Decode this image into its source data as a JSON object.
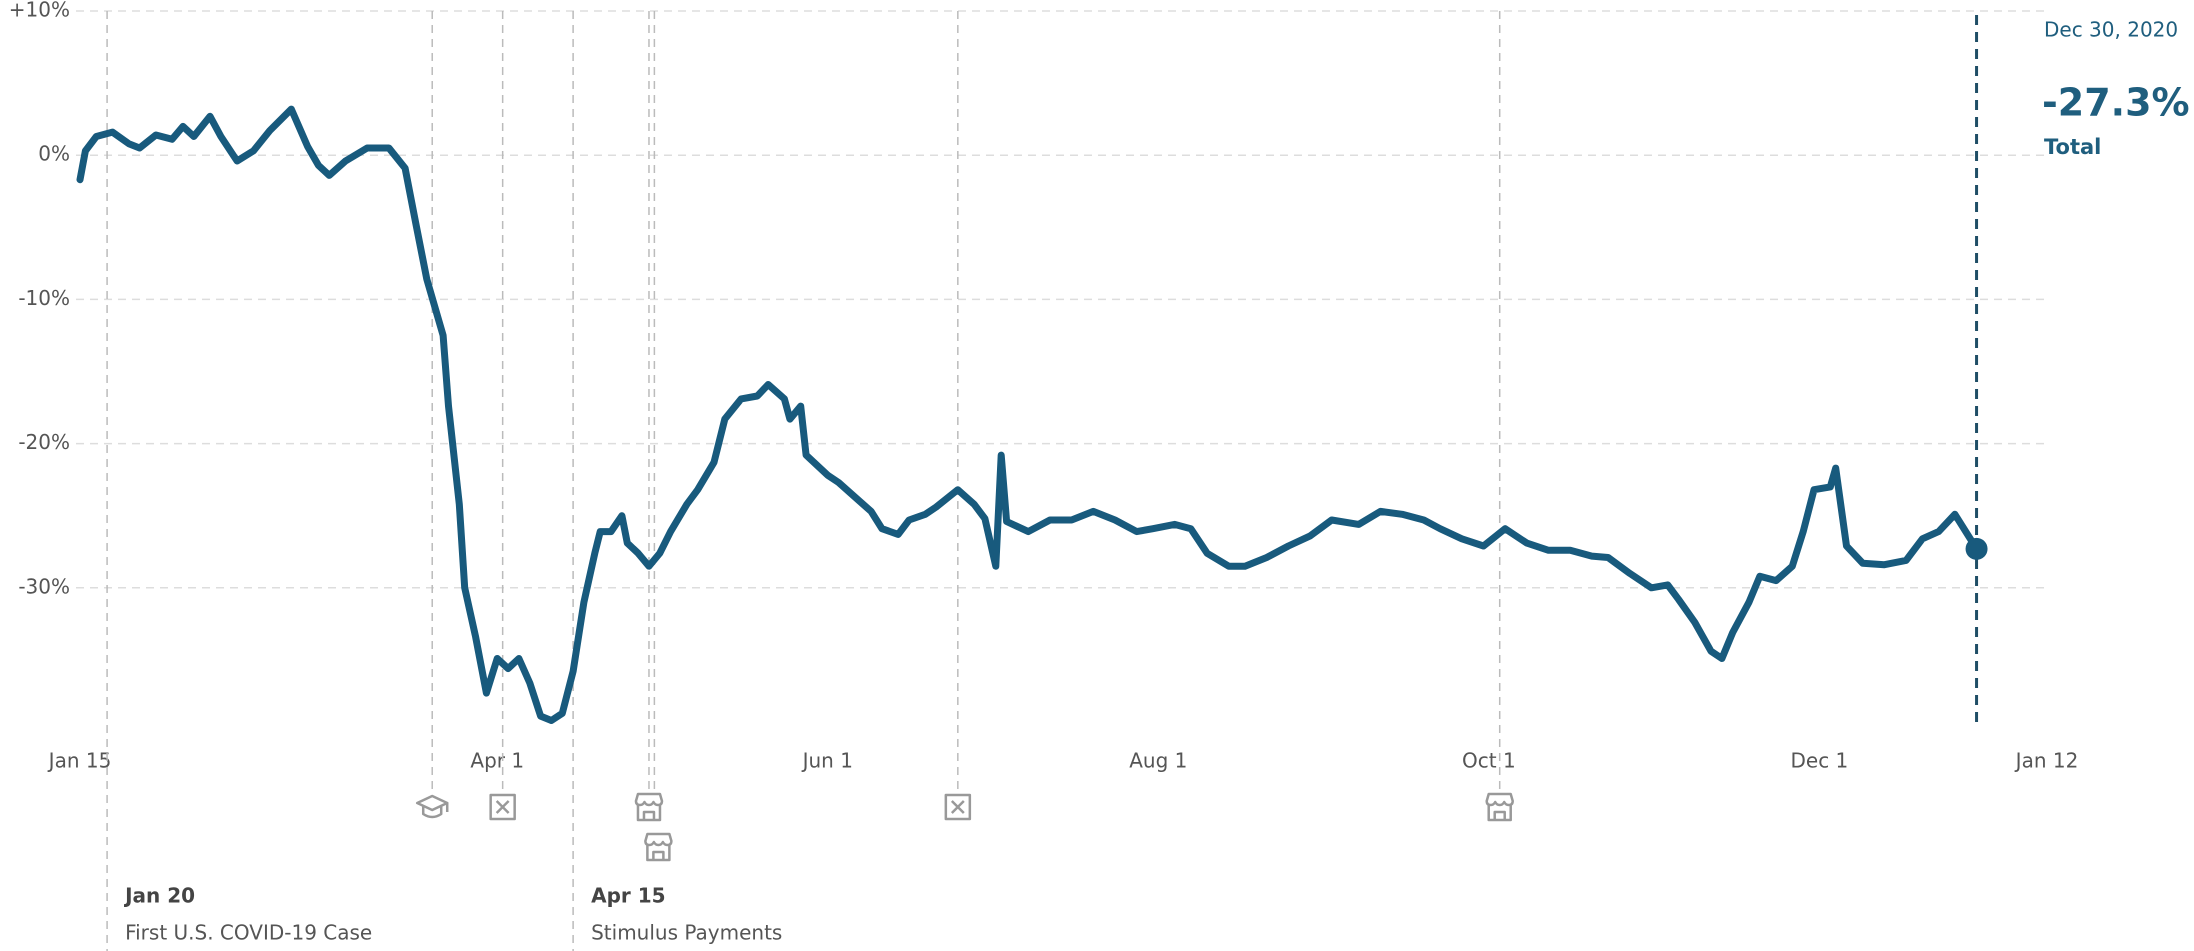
{
  "chart_data": {
    "type": "line",
    "color": "#185a7d",
    "xlim": [
      "2020-01-15",
      "2021-01-12"
    ],
    "xticks": [
      {
        "value": "2020-01-15",
        "label": "Jan 15"
      },
      {
        "value": "2020-04-01",
        "label": "Apr 1"
      },
      {
        "value": "2020-06-01",
        "label": "Jun 1"
      },
      {
        "value": "2020-08-01",
        "label": "Aug 1"
      },
      {
        "value": "2020-10-01",
        "label": "Oct 1"
      },
      {
        "value": "2020-12-01",
        "label": "Dec 1"
      },
      {
        "value": "2021-01-12",
        "label": "Jan 12"
      }
    ],
    "ylim": [
      -40,
      10
    ],
    "yticks": [
      {
        "value": 10,
        "label": "+10%"
      },
      {
        "value": 0,
        "label": "0%"
      },
      {
        "value": -10,
        "label": "-10%"
      },
      {
        "value": -20,
        "label": "-20%"
      },
      {
        "value": -30,
        "label": "-30%"
      }
    ],
    "grid": true,
    "x": [
      "2020-01-15",
      "2020-01-16",
      "2020-01-18",
      "2020-01-21",
      "2020-01-24",
      "2020-01-26",
      "2020-01-29",
      "2020-02-01",
      "2020-02-03",
      "2020-02-05",
      "2020-02-08",
      "2020-02-10",
      "2020-02-13",
      "2020-02-16",
      "2020-02-19",
      "2020-02-23",
      "2020-02-26",
      "2020-02-28",
      "2020-03-01",
      "2020-03-04",
      "2020-03-08",
      "2020-03-12",
      "2020-03-15",
      "2020-03-17",
      "2020-03-19",
      "2020-03-22",
      "2020-03-23",
      "2020-03-25",
      "2020-03-26",
      "2020-03-28",
      "2020-03-30",
      "2020-04-01",
      "2020-04-03",
      "2020-04-05",
      "2020-04-07",
      "2020-04-09",
      "2020-04-11",
      "2020-04-13",
      "2020-04-15",
      "2020-04-17",
      "2020-04-19",
      "2020-04-20",
      "2020-04-22",
      "2020-04-24",
      "2020-04-25",
      "2020-04-27",
      "2020-04-29",
      "2020-05-01",
      "2020-05-03",
      "2020-05-06",
      "2020-05-08",
      "2020-05-11",
      "2020-05-13",
      "2020-05-16",
      "2020-05-19",
      "2020-05-21",
      "2020-05-24",
      "2020-05-25",
      "2020-05-27",
      "2020-05-28",
      "2020-06-01",
      "2020-06-03",
      "2020-06-06",
      "2020-06-09",
      "2020-06-11",
      "2020-06-14",
      "2020-06-16",
      "2020-06-19",
      "2020-06-21",
      "2020-06-25",
      "2020-06-28",
      "2020-06-30",
      "2020-07-02",
      "2020-07-03",
      "2020-07-04",
      "2020-07-08",
      "2020-07-12",
      "2020-07-16",
      "2020-07-20",
      "2020-07-24",
      "2020-07-28",
      "2020-07-31",
      "2020-08-04",
      "2020-08-07",
      "2020-08-10",
      "2020-08-14",
      "2020-08-17",
      "2020-08-21",
      "2020-08-25",
      "2020-08-29",
      "2020-09-02",
      "2020-09-07",
      "2020-09-11",
      "2020-09-15",
      "2020-09-19",
      "2020-09-22",
      "2020-09-26",
      "2020-09-30",
      "2020-10-04",
      "2020-10-08",
      "2020-10-12",
      "2020-10-16",
      "2020-10-20",
      "2020-10-23",
      "2020-10-27",
      "2020-10-31",
      "2020-11-03",
      "2020-11-05",
      "2020-11-08",
      "2020-11-11",
      "2020-11-13",
      "2020-11-15",
      "2020-11-18",
      "2020-11-20",
      "2020-11-23",
      "2020-11-26",
      "2020-11-28",
      "2020-11-30",
      "2020-12-03",
      "2020-12-04",
      "2020-12-06",
      "2020-12-09",
      "2020-12-13",
      "2020-12-17",
      "2020-12-20",
      "2020-12-23",
      "2020-12-26",
      "2020-12-30"
    ],
    "values": [
      -1.7,
      0.3,
      1.3,
      1.6,
      0.8,
      0.5,
      1.4,
      1.1,
      2.0,
      1.3,
      2.7,
      1.3,
      -0.4,
      0.3,
      1.7,
      3.2,
      0.6,
      -0.7,
      -1.4,
      -0.4,
      0.5,
      0.5,
      -0.9,
      -4.8,
      -8.6,
      -12.5,
      -17.4,
      -24.2,
      -30.0,
      -33.4,
      -37.3,
      -34.9,
      -35.6,
      -34.9,
      -36.6,
      -38.9,
      -39.2,
      -38.7,
      -35.8,
      -31.0,
      -27.6,
      -26.1,
      -26.1,
      -25.0,
      -26.9,
      -27.6,
      -28.5,
      -27.6,
      -26.1,
      -24.2,
      -23.2,
      -21.3,
      -18.3,
      -16.9,
      -16.7,
      -15.9,
      -16.9,
      -18.3,
      -17.4,
      -20.8,
      -22.2,
      -22.7,
      -23.7,
      -24.7,
      -25.9,
      -26.3,
      -25.3,
      -24.9,
      -24.4,
      -23.2,
      -24.2,
      -25.2,
      -28.5,
      -20.8,
      -25.4,
      -26.1,
      -25.3,
      -25.3,
      -24.7,
      -25.3,
      -26.1,
      -25.9,
      -25.6,
      -25.9,
      -27.6,
      -28.5,
      -28.5,
      -27.9,
      -27.1,
      -26.4,
      -25.3,
      -25.6,
      -24.7,
      -24.9,
      -25.3,
      -25.9,
      -26.6,
      -27.1,
      -25.9,
      -26.9,
      -27.4,
      -27.4,
      -27.8,
      -27.9,
      -29.0,
      -30.0,
      -29.8,
      -30.8,
      -32.4,
      -34.4,
      -34.9,
      -33.1,
      -31.0,
      -29.2,
      -29.5,
      -28.5,
      -26.1,
      -23.2,
      -23.0,
      -21.7,
      -27.1,
      -28.3,
      -28.4,
      -28.1,
      -26.6,
      -26.1,
      -24.9,
      -27.3
    ],
    "callout": {
      "date": "Dec 30, 2020",
      "value_label": "-27.3%",
      "label": "Total"
    },
    "events": [
      {
        "x": "2020-01-20",
        "title": "Jan 20",
        "text": "First U.S. COVID-19 Case"
      },
      {
        "x": "2020-03-20",
        "icon": "school"
      },
      {
        "x": "2020-04-02",
        "icon": "closed"
      },
      {
        "x": "2020-04-15",
        "title": "Apr 15",
        "text": "Stimulus Payments"
      },
      {
        "x": "2020-04-29",
        "icon": "store"
      },
      {
        "x": "2020-04-30",
        "icon": "store"
      },
      {
        "x": "2020-06-25",
        "icon": "closed"
      },
      {
        "x": "2020-10-03",
        "icon": "store"
      }
    ]
  }
}
